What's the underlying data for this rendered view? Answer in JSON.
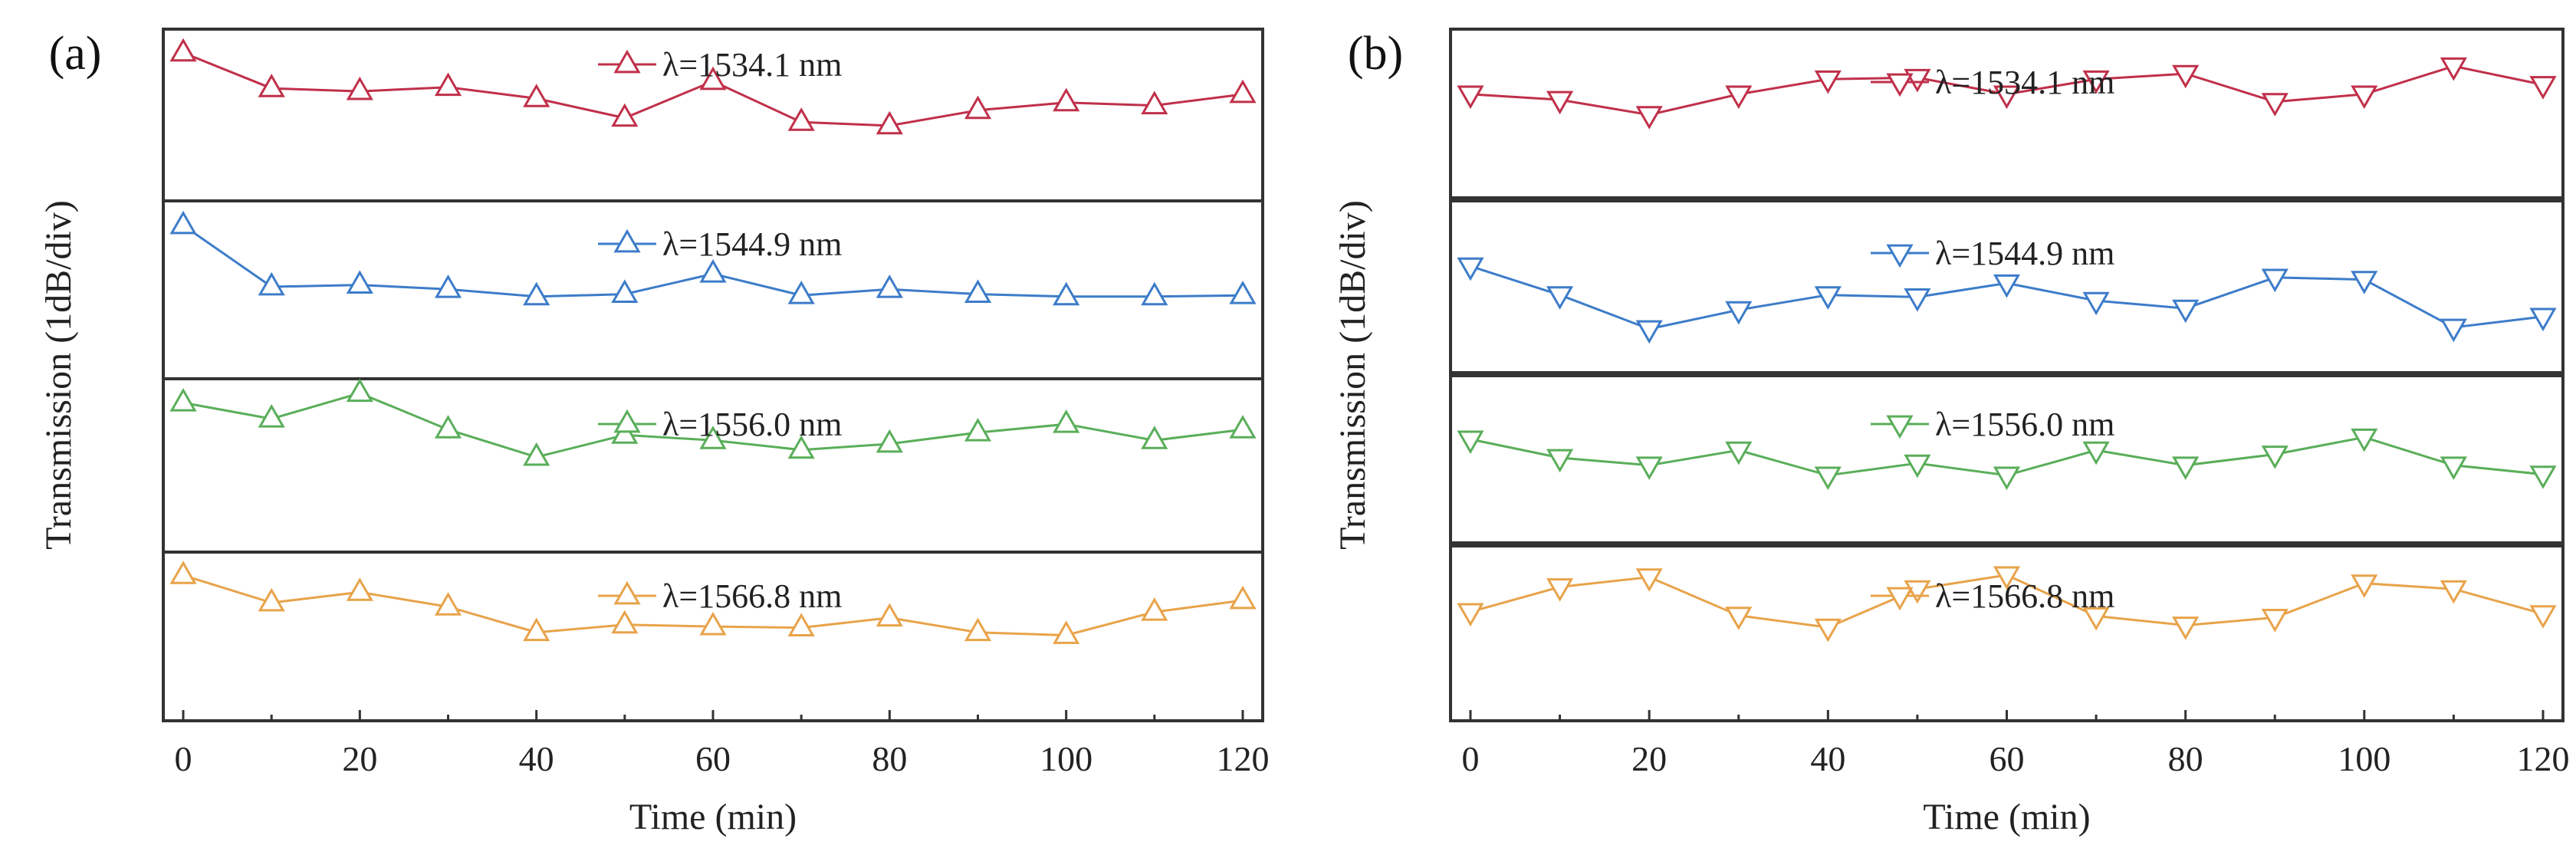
{
  "chart_data": [
    {
      "type": "line",
      "panel_label": "(a)",
      "marker": "triangle-up",
      "xlabel": "Time (min)",
      "ylabel": "Transmission (1dB/div)",
      "x_ticks": [
        "0",
        "20",
        "40",
        "60",
        "80",
        "100",
        "120"
      ],
      "xlim": [
        0,
        120
      ],
      "y_unit": "dB",
      "ylim_per_track": [
        -2.5,
        0.4
      ],
      "series": [
        {
          "name": "λ=1534.1 nm",
          "color": "#c0304a",
          "x": [
            0,
            10,
            20,
            30,
            40,
            50,
            60,
            70,
            80,
            90,
            100,
            110,
            120
          ],
          "values": [
            0,
            -0.6,
            -0.65,
            -0.58,
            -0.77,
            -1.1,
            -0.48,
            -1.17,
            -1.23,
            -0.97,
            -0.84,
            -0.89,
            -0.7
          ]
        },
        {
          "name": "λ=1544.9 nm",
          "color": "#3d7cc9",
          "x": [
            0,
            10,
            20,
            30,
            40,
            50,
            60,
            70,
            80,
            90,
            100,
            110,
            120
          ],
          "values": [
            0,
            -1.0,
            -0.97,
            -1.04,
            -1.16,
            -1.12,
            -0.79,
            -1.14,
            -1.04,
            -1.12,
            -1.16,
            -1.16,
            -1.14
          ]
        },
        {
          "name": "λ=1556.0 nm",
          "color": "#5aae5a",
          "x": [
            0,
            10,
            20,
            30,
            40,
            50,
            60,
            70,
            80,
            90,
            100,
            110,
            120
          ],
          "values": [
            0,
            -0.27,
            0.16,
            -0.45,
            -0.91,
            -0.54,
            -0.63,
            -0.79,
            -0.69,
            -0.5,
            -0.36,
            -0.63,
            -0.45
          ]
        },
        {
          "name": "λ=1566.8 nm",
          "color": "#e8a34a",
          "x": [
            0,
            10,
            20,
            30,
            40,
            50,
            60,
            70,
            80,
            90,
            100,
            110,
            120
          ],
          "values": [
            0,
            -0.47,
            -0.29,
            -0.54,
            -0.98,
            -0.85,
            -0.88,
            -0.9,
            -0.73,
            -0.98,
            -1.03,
            -0.63,
            -0.43
          ]
        }
      ]
    },
    {
      "type": "line",
      "panel_label": "(b)",
      "marker": "triangle-down",
      "xlabel": "Time (min)",
      "ylabel": "Transmission (1dB/div)",
      "x_ticks": [
        "0",
        "20",
        "40",
        "60",
        "80",
        "100",
        "120"
      ],
      "xlim": [
        0,
        120
      ],
      "y_unit": "dB",
      "ylim_per_track": [
        -2.1,
        1.3
      ],
      "series": [
        {
          "name": "λ=1534.1 nm",
          "color": "#c0304a",
          "x": [
            0,
            10,
            20,
            30,
            40,
            50,
            60,
            70,
            80,
            90,
            100,
            110,
            120
          ],
          "values": [
            0,
            -0.11,
            -0.41,
            0,
            0.3,
            0.33,
            0,
            0.3,
            0.41,
            -0.15,
            0,
            0.56,
            0.19
          ]
        },
        {
          "name": "λ=1544.9 nm",
          "color": "#3d7cc9",
          "x": [
            0,
            10,
            20,
            30,
            40,
            50,
            60,
            70,
            80,
            90,
            100,
            110,
            120
          ],
          "values": [
            0,
            -0.56,
            -1.22,
            -0.85,
            -0.56,
            -0.6,
            -0.33,
            -0.67,
            -0.82,
            -0.22,
            -0.26,
            -1.19,
            -0.98
          ]
        },
        {
          "name": "λ=1556.0 nm",
          "color": "#5aae5a",
          "x": [
            0,
            10,
            20,
            30,
            40,
            50,
            60,
            70,
            80,
            90,
            100,
            110,
            120
          ],
          "values": [
            0,
            -0.37,
            -0.52,
            -0.22,
            -0.72,
            -0.48,
            -0.72,
            -0.22,
            -0.52,
            -0.3,
            0.04,
            -0.52,
            -0.7
          ]
        },
        {
          "name": "λ=1566.8 nm",
          "color": "#e8a34a",
          "x": [
            0,
            10,
            20,
            30,
            40,
            50,
            60,
            70,
            80,
            90,
            100,
            110,
            120
          ],
          "values": [
            0,
            0.48,
            0.67,
            -0.07,
            -0.3,
            0.44,
            0.71,
            -0.08,
            -0.26,
            -0.11,
            0.55,
            0.44,
            -0.04
          ]
        }
      ]
    }
  ]
}
